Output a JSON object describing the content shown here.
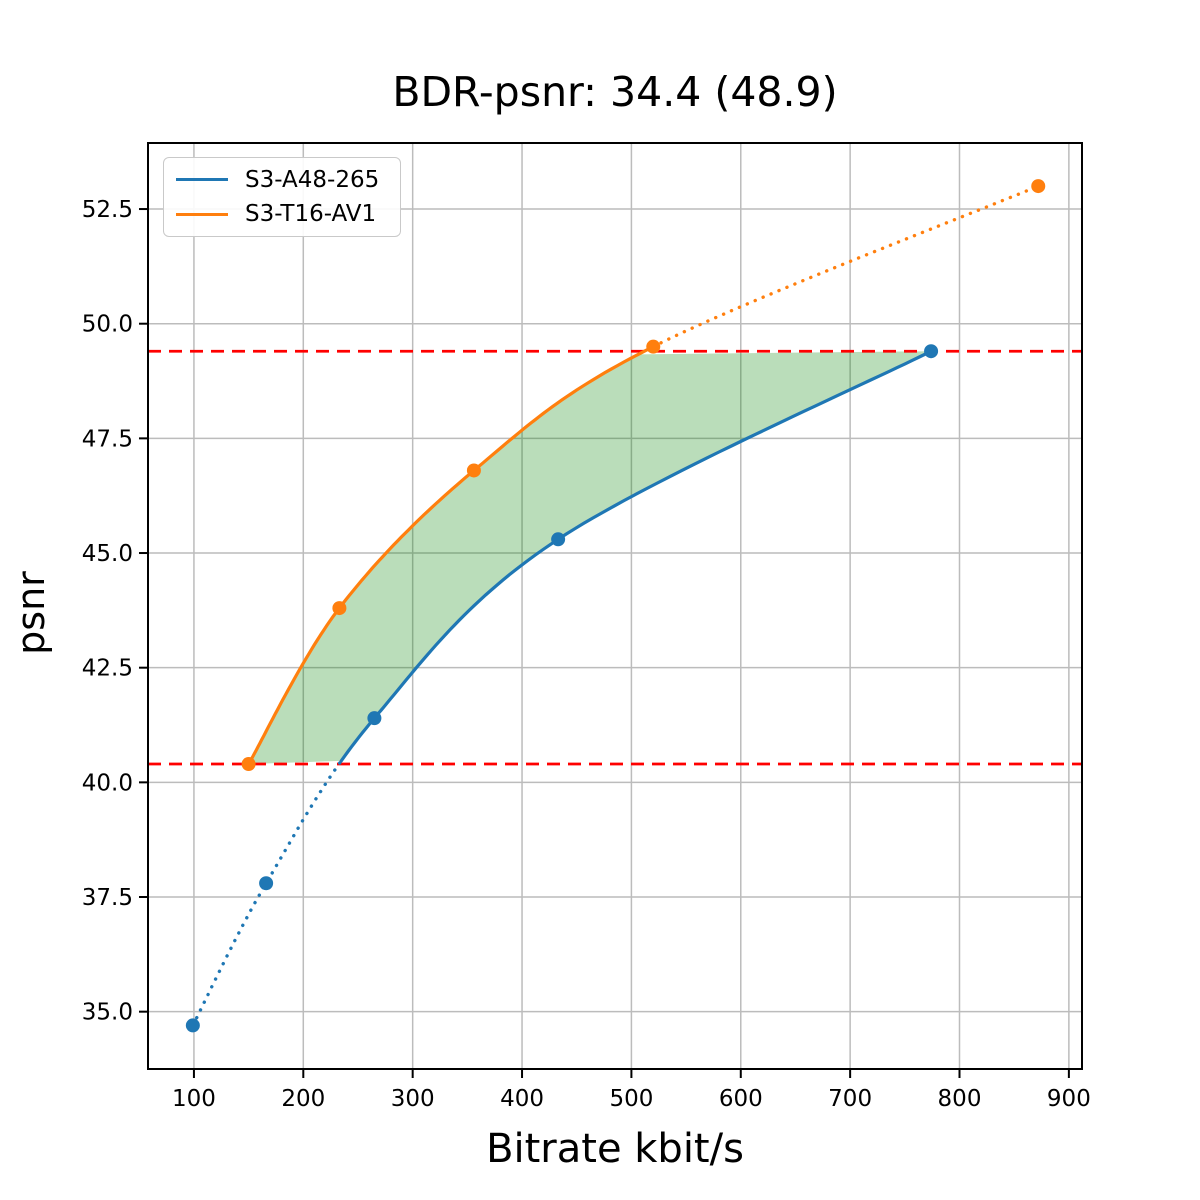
{
  "chart_data": {
    "type": "line",
    "title": "BDR-psnr: 34.4 (48.9)",
    "xlabel": "Bitrate kbit/s",
    "ylabel": "psnr",
    "xlim": [
      58,
      912
    ],
    "ylim": [
      33.75,
      53.94
    ],
    "xticks": [
      "100",
      "200",
      "300",
      "400",
      "500",
      "600",
      "700",
      "800",
      "900"
    ],
    "yticks": [
      "35.0",
      "37.5",
      "40.0",
      "42.5",
      "45.0",
      "47.5",
      "50.0",
      "52.5"
    ],
    "grid": true,
    "grid_color": "#bcbcbc",
    "legend_position": "upper left",
    "series": [
      {
        "name": "S3-A48-265",
        "color": "#1f77b4",
        "marker": "circle",
        "x": [
          99,
          166,
          265,
          433,
          774
        ],
        "y": [
          34.7,
          37.8,
          41.4,
          45.3,
          49.4
        ],
        "dotted_below_psnr": 40.4
      },
      {
        "name": "S3-T16-AV1",
        "color": "#ff7f0e",
        "marker": "circle",
        "x": [
          150,
          233,
          356,
          520,
          872
        ],
        "y": [
          40.4,
          43.8,
          46.8,
          49.5,
          53.0
        ],
        "dotted_after_point_index": 3
      }
    ],
    "hlines": [
      {
        "psnr": 40.4,
        "color": "#ff0000",
        "style": "dashed"
      },
      {
        "psnr": 49.4,
        "color": "#ff0000",
        "style": "dashed"
      }
    ],
    "fill_between": {
      "color": "#008000",
      "opacity": 0.27,
      "psnr_range": [
        40.4,
        49.4
      ]
    }
  }
}
